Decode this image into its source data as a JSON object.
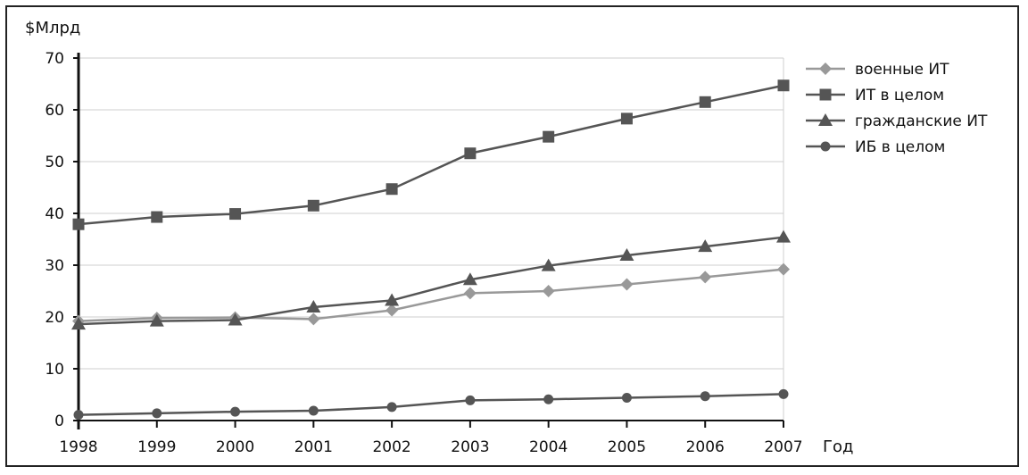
{
  "chart_data": {
    "type": "line",
    "ylabel": "$Млрд",
    "xlabel": "Год",
    "ylim": [
      0,
      70
    ],
    "yticks": [
      0,
      10,
      20,
      30,
      40,
      50,
      60,
      70
    ],
    "x": [
      "1998",
      "1999",
      "2000",
      "2001",
      "2002",
      "2003",
      "2004",
      "2005",
      "2006",
      "2007"
    ],
    "grid": true,
    "legend_position": "right",
    "series": [
      {
        "name": "военные ИТ",
        "marker": "diamond",
        "color": "#999999",
        "values": [
          19.2,
          19.8,
          19.9,
          19.6,
          21.3,
          24.6,
          25.0,
          26.3,
          27.7,
          29.2
        ]
      },
      {
        "name": "ИТ в целом",
        "marker": "square",
        "color": "#555555",
        "values": [
          37.9,
          39.3,
          39.9,
          41.5,
          44.7,
          51.6,
          54.8,
          58.3,
          61.5,
          64.7
        ]
      },
      {
        "name": "гражданские ИТ",
        "marker": "triangle",
        "color": "#555555",
        "values": [
          18.6,
          19.2,
          19.4,
          21.9,
          23.2,
          27.2,
          29.9,
          31.9,
          33.6,
          35.4
        ]
      },
      {
        "name": "ИБ в целом",
        "marker": "circle",
        "color": "#555555",
        "values": [
          1.1,
          1.4,
          1.7,
          1.9,
          2.6,
          3.9,
          4.1,
          4.4,
          4.7,
          5.1
        ]
      }
    ]
  }
}
